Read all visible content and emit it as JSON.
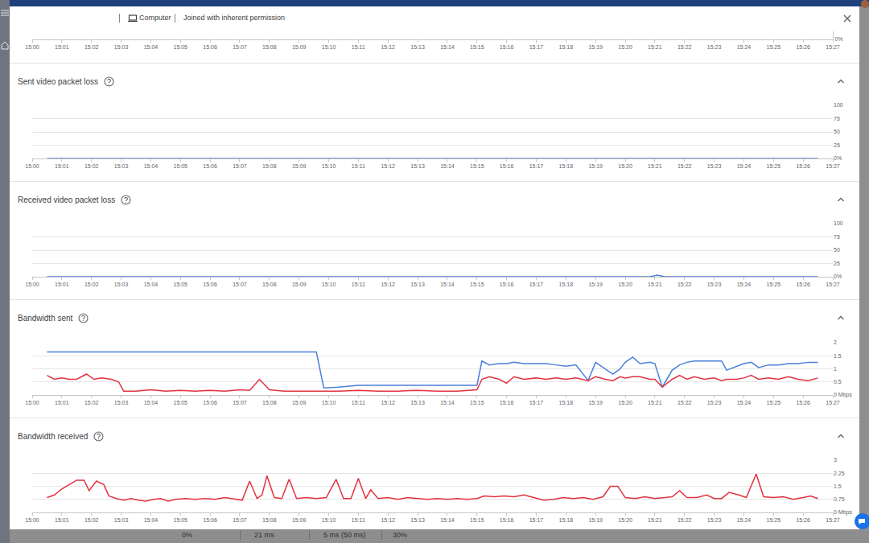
{
  "header": {
    "device": "Computer",
    "permission": "Joined with inherent permission"
  },
  "chart_data": [
    {
      "type": "line",
      "xlim": [
        "15:00",
        "15:27"
      ],
      "xticks": [
        "15:00",
        "15:01",
        "15:02",
        "15:03",
        "15:04",
        "15:05",
        "15:06",
        "15:07",
        "15:08",
        "15:09",
        "15:10",
        "15:11",
        "15:12",
        "15:13",
        "15:14",
        "15:15",
        "15:16",
        "15:17",
        "15:18",
        "15:19",
        "15:20",
        "15:21",
        "15:22",
        "15:23",
        "15:24",
        "15:25",
        "15:26",
        "15:27"
      ],
      "ylim": [
        0,
        100
      ],
      "yticks": [
        {
          "value": 0,
          "label": "0%"
        }
      ],
      "grid": true,
      "series": []
    },
    {
      "type": "line",
      "title": "Sent video packet loss",
      "xlim": [
        "15:00",
        "15:27"
      ],
      "xticks": [
        "15:00",
        "15:01",
        "15:02",
        "15:03",
        "15:04",
        "15:05",
        "15:06",
        "15:07",
        "15:08",
        "15:09",
        "15:10",
        "15:11",
        "15:12",
        "15:13",
        "15:14",
        "15:15",
        "15:16",
        "15:17",
        "15:18",
        "15:19",
        "15:20",
        "15:21",
        "15:22",
        "15:23",
        "15:24",
        "15:25",
        "15:26",
        "15:27"
      ],
      "ylim": [
        0,
        100
      ],
      "yticks": [
        {
          "value": 0,
          "label": "0%"
        },
        25,
        50,
        75,
        100
      ],
      "grid": true,
      "x": [
        "15:00:30",
        "15:26:30"
      ],
      "series": [
        {
          "color": "#4a7fdc",
          "values": [
            0,
            0
          ]
        }
      ]
    },
    {
      "type": "line",
      "title": "Received video packet loss",
      "xlim": [
        "15:00",
        "15:27"
      ],
      "xticks": [
        "15:00",
        "15:01",
        "15:02",
        "15:03",
        "15:04",
        "15:05",
        "15:06",
        "15:07",
        "15:08",
        "15:09",
        "15:10",
        "15:11",
        "15:12",
        "15:13",
        "15:14",
        "15:15",
        "15:16",
        "15:17",
        "15:18",
        "15:19",
        "15:20",
        "15:21",
        "15:22",
        "15:23",
        "15:24",
        "15:25",
        "15:26",
        "15:27"
      ],
      "ylim": [
        0,
        100
      ],
      "yticks": [
        {
          "value": 0,
          "label": "0%"
        },
        25,
        50,
        75,
        100
      ],
      "grid": true,
      "x": [
        "15:00:30",
        "15:20:50",
        "15:21:05",
        "15:21:20",
        "15:26:30"
      ],
      "series": [
        {
          "color": "#4a7fdc",
          "values": [
            0,
            0,
            3,
            0,
            0
          ]
        }
      ]
    },
    {
      "type": "line",
      "title": "Bandwidth sent",
      "xlim": [
        "15:00",
        "15:27"
      ],
      "xticks": [
        "15:00",
        "15:01",
        "15:02",
        "15:03",
        "15:04",
        "15:05",
        "15:06",
        "15:07",
        "15:08",
        "15:09",
        "15:10",
        "15:11",
        "15:12",
        "15:13",
        "15:14",
        "15:15",
        "15:16",
        "15:17",
        "15:18",
        "15:19",
        "15:20",
        "15:21",
        "15:22",
        "15:23",
        "15:24",
        "15:25",
        "15:26",
        "15:27"
      ],
      "ylim": [
        0,
        2
      ],
      "yticks": [
        {
          "value": 0,
          "label": "0 Mbps"
        },
        0.5,
        1,
        1.5,
        2
      ],
      "grid": true,
      "x": [
        "15:00:30",
        "15:00:45",
        "15:01:00",
        "15:01:15",
        "15:01:30",
        "15:01:50",
        "15:02:05",
        "15:02:20",
        "15:02:40",
        "15:02:55",
        "15:03:05",
        "15:03:30",
        "15:04:00",
        "15:04:30",
        "15:05:00",
        "15:05:30",
        "15:06:00",
        "15:06:30",
        "15:07:00",
        "15:07:20",
        "15:07:40",
        "15:08:00",
        "15:08:30",
        "15:09:00",
        "15:09:35",
        "15:09:50",
        "15:10:20",
        "15:11:00",
        "15:11:40",
        "15:12:20",
        "15:13:00",
        "15:13:40",
        "15:14:20",
        "15:15:00",
        "15:15:10",
        "15:15:25",
        "15:15:45",
        "15:16:00",
        "15:16:15",
        "15:16:35",
        "15:17:00",
        "15:17:20",
        "15:17:40",
        "15:18:00",
        "15:18:20",
        "15:18:45",
        "15:19:00",
        "15:19:20",
        "15:19:35",
        "15:19:50",
        "15:20:00",
        "15:20:15",
        "15:20:30",
        "15:20:50",
        "15:21:00",
        "15:21:15",
        "15:21:35",
        "15:21:50",
        "15:22:05",
        "15:22:20",
        "15:22:40",
        "15:23:00",
        "15:23:15",
        "15:23:25",
        "15:23:45",
        "15:24:00",
        "15:24:15",
        "15:24:30",
        "15:24:50",
        "15:25:10",
        "15:25:30",
        "15:25:50",
        "15:26:10",
        "15:26:30"
      ],
      "series": [
        {
          "color": "#4a7fdc",
          "values": [
            1.65,
            1.65,
            1.65,
            1.65,
            1.65,
            1.65,
            1.65,
            1.65,
            1.65,
            1.65,
            1.65,
            1.65,
            1.65,
            1.65,
            1.65,
            1.65,
            1.65,
            1.65,
            1.65,
            1.65,
            1.65,
            1.65,
            1.65,
            1.65,
            1.65,
            0.27,
            0.3,
            0.37,
            0.37,
            0.37,
            0.37,
            0.37,
            0.37,
            0.37,
            1.3,
            1.15,
            1.2,
            1.2,
            1.25,
            1.2,
            1.2,
            1.2,
            1.15,
            1.1,
            1.15,
            0.55,
            1.25,
            1.0,
            0.8,
            1.0,
            1.25,
            1.45,
            1.2,
            1.25,
            1.2,
            0.3,
            0.95,
            1.15,
            1.25,
            1.3,
            1.3,
            1.3,
            1.3,
            0.95,
            1.1,
            1.2,
            1.25,
            1.05,
            1.15,
            1.15,
            1.2,
            1.2,
            1.25,
            1.25
          ]
        },
        {
          "color": "#e2323f",
          "values": [
            0.75,
            0.6,
            0.65,
            0.6,
            0.6,
            0.8,
            0.6,
            0.65,
            0.6,
            0.5,
            0.15,
            0.15,
            0.2,
            0.15,
            0.18,
            0.15,
            0.18,
            0.15,
            0.2,
            0.18,
            0.6,
            0.2,
            0.15,
            0.15,
            0.15,
            0.15,
            0.15,
            0.18,
            0.15,
            0.15,
            0.18,
            0.15,
            0.15,
            0.2,
            0.6,
            0.7,
            0.6,
            0.45,
            0.7,
            0.6,
            0.65,
            0.6,
            0.65,
            0.6,
            0.65,
            0.55,
            0.7,
            0.6,
            0.55,
            0.7,
            0.65,
            0.7,
            0.7,
            0.6,
            0.6,
            0.3,
            0.6,
            0.75,
            0.6,
            0.7,
            0.6,
            0.65,
            0.55,
            0.6,
            0.6,
            0.65,
            0.75,
            0.6,
            0.65,
            0.6,
            0.7,
            0.6,
            0.55,
            0.65
          ]
        }
      ]
    },
    {
      "type": "line",
      "title": "Bandwidth received",
      "xlim": [
        "15:00",
        "15:27"
      ],
      "xticks": [
        "15:00",
        "15:01",
        "15:02",
        "15:03",
        "15:04",
        "15:05",
        "15:06",
        "15:07",
        "15:08",
        "15:09",
        "15:10",
        "15:11",
        "15:12",
        "15:13",
        "15:14",
        "15:15",
        "15:16",
        "15:17",
        "15:18",
        "15:19",
        "15:20",
        "15:21",
        "15:22",
        "15:23",
        "15:24",
        "15:25",
        "15:26",
        "15:27"
      ],
      "ylim": [
        0,
        3
      ],
      "yticks": [
        {
          "value": 0,
          "label": "0 Mbps"
        },
        0.75,
        1.5,
        2.25,
        3
      ],
      "grid": true,
      "x": [
        "15:00:30",
        "15:00:45",
        "15:01:00",
        "15:01:15",
        "15:01:30",
        "15:01:45",
        "15:01:55",
        "15:02:10",
        "15:02:25",
        "15:02:35",
        "15:02:50",
        "15:03:05",
        "15:03:20",
        "15:03:35",
        "15:03:50",
        "15:04:05",
        "15:04:20",
        "15:04:35",
        "15:04:50",
        "15:05:10",
        "15:05:30",
        "15:05:50",
        "15:06:10",
        "15:06:30",
        "15:06:50",
        "15:07:05",
        "15:07:20",
        "15:07:35",
        "15:07:45",
        "15:07:55",
        "15:08:10",
        "15:08:25",
        "15:08:40",
        "15:08:55",
        "15:09:15",
        "15:09:35",
        "15:09:55",
        "15:10:15",
        "15:10:30",
        "15:10:45",
        "15:11:00",
        "15:11:15",
        "15:11:25",
        "15:11:40",
        "15:12:00",
        "15:12:20",
        "15:12:40",
        "15:13:00",
        "15:13:20",
        "15:13:40",
        "15:14:00",
        "15:14:20",
        "15:14:40",
        "15:15:00",
        "15:15:15",
        "15:15:35",
        "15:15:55",
        "15:16:15",
        "15:16:35",
        "15:16:55",
        "15:17:15",
        "15:17:35",
        "15:17:55",
        "15:18:15",
        "15:18:35",
        "15:18:55",
        "15:19:15",
        "15:19:30",
        "15:19:45",
        "15:20:00",
        "15:20:20",
        "15:20:40",
        "15:21:00",
        "15:21:20",
        "15:21:35",
        "15:21:50",
        "15:22:05",
        "15:22:25",
        "15:22:45",
        "15:23:00",
        "15:23:15",
        "15:23:30",
        "15:23:50",
        "15:24:05",
        "15:24:25",
        "15:24:40",
        "15:25:00",
        "15:25:20",
        "15:25:40",
        "15:26:00",
        "15:26:15",
        "15:26:30"
      ],
      "series": [
        {
          "color": "#e2323f",
          "values": [
            0.85,
            1.0,
            1.35,
            1.6,
            1.85,
            1.85,
            1.25,
            1.8,
            1.6,
            0.95,
            0.8,
            0.7,
            0.8,
            0.7,
            0.65,
            0.75,
            0.8,
            0.65,
            0.75,
            0.8,
            0.75,
            0.8,
            0.75,
            0.85,
            0.75,
            0.7,
            1.8,
            0.8,
            1.0,
            2.1,
            0.85,
            0.8,
            1.9,
            0.8,
            0.85,
            0.8,
            0.85,
            1.9,
            0.8,
            0.8,
            1.95,
            0.8,
            1.3,
            0.8,
            0.85,
            0.75,
            0.85,
            0.8,
            0.75,
            0.8,
            0.75,
            0.8,
            0.75,
            0.8,
            0.95,
            0.9,
            0.95,
            0.9,
            1.0,
            0.85,
            0.7,
            0.75,
            0.85,
            0.8,
            0.85,
            0.75,
            0.9,
            1.5,
            1.5,
            0.85,
            0.8,
            0.9,
            0.8,
            0.85,
            0.9,
            1.25,
            0.85,
            0.85,
            1.0,
            0.8,
            0.8,
            1.15,
            1.0,
            0.85,
            2.2,
            0.9,
            0.85,
            0.9,
            0.75,
            0.85,
            0.95,
            0.8
          ]
        }
      ]
    }
  ],
  "footer": [
    "0%",
    "21 ms",
    "5 ms (50 ms)",
    "30%"
  ]
}
